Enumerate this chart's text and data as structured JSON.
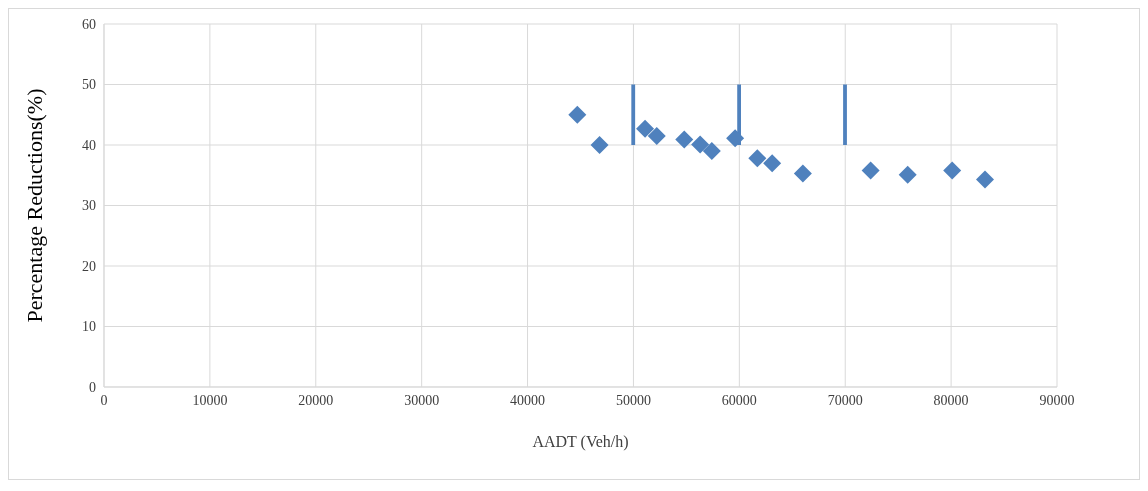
{
  "chart_data": {
    "type": "scatter",
    "xlabel": "AADT (Veh/h)",
    "ylabel": "Percentage Reductions(%)",
    "xlim": [
      0,
      90000
    ],
    "xticks": [
      0,
      10000,
      20000,
      30000,
      40000,
      50000,
      60000,
      70000,
      80000,
      90000
    ],
    "ylim": [
      0,
      60
    ],
    "yticks": [
      0,
      10,
      20,
      30,
      40,
      50,
      60
    ],
    "grid": true,
    "marker": "diamond",
    "series": [
      {
        "color": "#4f81bd",
        "x": [
          44700,
          46800,
          51100,
          52200,
          54800,
          56300,
          57400,
          59600,
          61700,
          63100,
          66000,
          72400,
          75900,
          80100,
          83200
        ],
        "values": [
          45,
          40,
          42.7,
          41.5,
          40.9,
          40.1,
          39,
          41.1,
          37.8,
          37,
          35.3,
          35.8,
          35.1,
          35.8,
          34.3
        ]
      },
      {
        "type": "bar",
        "color": "#4f81bd",
        "x": [
          50000,
          60000,
          70000
        ],
        "base": [
          40,
          40,
          40
        ],
        "values": [
          10,
          10,
          10
        ]
      }
    ]
  }
}
